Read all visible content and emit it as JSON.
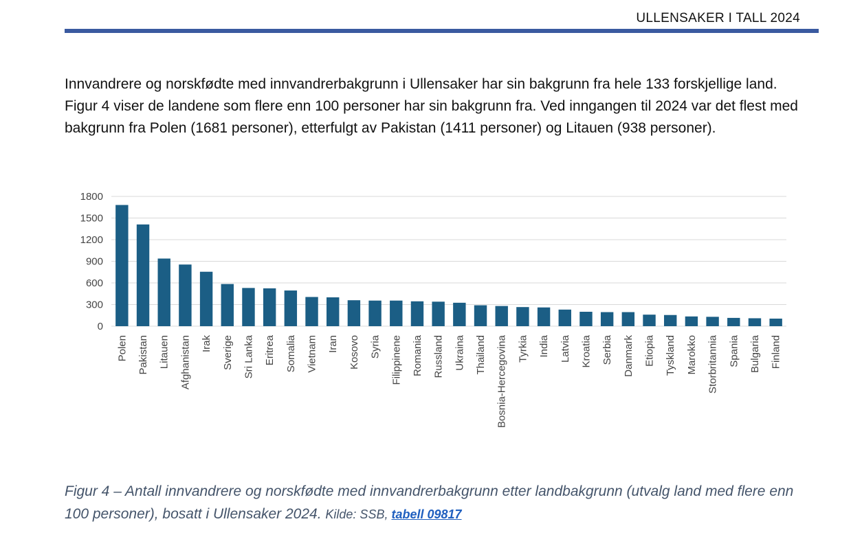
{
  "header": {
    "title": "ULLENSAKER I TALL 2024",
    "rule_color": "#3a5aa0"
  },
  "intro_text": "Innvandrere og norskfødte med innvandrerbakgrunn i Ullensaker har sin bakgrunn fra hele 133 forskjellige land. Figur 4 viser de landene som flere enn 100 personer har sin bakgrunn fra. Ved inngangen til 2024 var det flest med bakgrunn fra Polen (1681 personer), etterfulgt av Pakistan (1411 personer) og Litauen (938 personer).",
  "chart_data": {
    "type": "bar",
    "categories": [
      "Polen",
      "Pakistan",
      "Litauen",
      "Afghanistan",
      "Irak",
      "Sverige",
      "Sri Lanka",
      "Eritrea",
      "Somalia",
      "Vietnam",
      "Iran",
      "Kosovo",
      "Syria",
      "Filippinene",
      "Romania",
      "Russland",
      "Ukraina",
      "Thailand",
      "Bosnia-Hercegovina",
      "Tyrkia",
      "India",
      "Latvia",
      "Kroatia",
      "Serbia",
      "Danmark",
      "Etiopia",
      "Tyskland",
      "Marokko",
      "Storbritannia",
      "Spania",
      "Bulgaria",
      "Finland"
    ],
    "values": [
      1681,
      1411,
      938,
      855,
      755,
      585,
      530,
      525,
      495,
      405,
      400,
      360,
      355,
      355,
      345,
      340,
      325,
      290,
      280,
      265,
      260,
      230,
      200,
      195,
      195,
      160,
      155,
      135,
      130,
      115,
      110,
      105
    ],
    "yticks": [
      0,
      300,
      600,
      900,
      1200,
      1500,
      1800
    ],
    "ylim": [
      0,
      1800
    ],
    "grid": true,
    "bar_color": "#1b5e85",
    "grid_color": "#d9d9d9"
  },
  "caption": {
    "main": "Figur 4 – Antall innvandrere og norskfødte med innvandrerbakgrunn etter landbakgrunn (utvalg land med flere enn 100 personer), bosatt i Ullensaker 2024.",
    "source_prefix": "Kilde: SSB,",
    "source_link": "tabell 09817"
  }
}
